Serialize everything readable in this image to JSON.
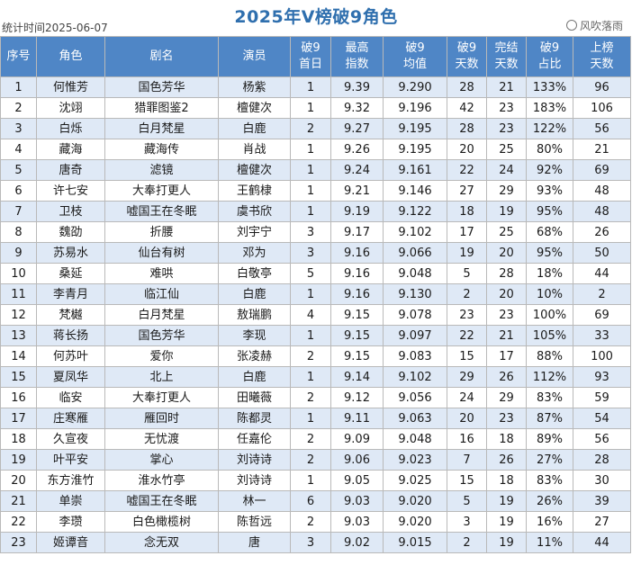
{
  "title": "2025年V榜破9角色",
  "stat_date": "统计时间2025-06-07",
  "watermark": "风吹落雨",
  "headers": {
    "seq": "序号",
    "role": "角色",
    "drama": "剧名",
    "actor": "演员",
    "first_day": [
      "破9",
      "首日"
    ],
    "max_index": [
      "最高",
      "指数"
    ],
    "avg": [
      "破9",
      "均值"
    ],
    "days": [
      "破9",
      "天数"
    ],
    "finished": [
      "完结",
      "天数"
    ],
    "ratio": [
      "破9",
      "占比"
    ],
    "list_days": [
      "上榜",
      "天数"
    ]
  },
  "rows": [
    {
      "seq": "1",
      "role": "何惟芳",
      "drama": "国色芳华",
      "actor": "杨紫",
      "first_day": "1",
      "max_index": "9.39",
      "avg": "9.290",
      "days": "28",
      "finished": "21",
      "ratio": "133%",
      "list_days": "96"
    },
    {
      "seq": "2",
      "role": "沈翊",
      "drama": "猎罪图鉴2",
      "actor": "檀健次",
      "first_day": "1",
      "max_index": "9.32",
      "avg": "9.196",
      "days": "42",
      "finished": "23",
      "ratio": "183%",
      "list_days": "106"
    },
    {
      "seq": "3",
      "role": "白烁",
      "drama": "白月梵星",
      "actor": "白鹿",
      "first_day": "2",
      "max_index": "9.27",
      "avg": "9.195",
      "days": "28",
      "finished": "23",
      "ratio": "122%",
      "list_days": "56"
    },
    {
      "seq": "4",
      "role": "藏海",
      "drama": "藏海传",
      "actor": "肖战",
      "first_day": "1",
      "max_index": "9.26",
      "avg": "9.195",
      "days": "20",
      "finished": "25",
      "ratio": "80%",
      "list_days": "21"
    },
    {
      "seq": "5",
      "role": "唐奇",
      "drama": "滤镜",
      "actor": "檀健次",
      "first_day": "1",
      "max_index": "9.24",
      "avg": "9.161",
      "days": "22",
      "finished": "24",
      "ratio": "92%",
      "list_days": "69"
    },
    {
      "seq": "6",
      "role": "许七安",
      "drama": "大奉打更人",
      "actor": "王鹤棣",
      "first_day": "1",
      "max_index": "9.21",
      "avg": "9.146",
      "days": "27",
      "finished": "29",
      "ratio": "93%",
      "list_days": "48"
    },
    {
      "seq": "7",
      "role": "卫枝",
      "drama": "嘘国王在冬眠",
      "actor": "虞书欣",
      "first_day": "1",
      "max_index": "9.19",
      "avg": "9.122",
      "days": "18",
      "finished": "19",
      "ratio": "95%",
      "list_days": "48"
    },
    {
      "seq": "8",
      "role": "魏劭",
      "drama": "折腰",
      "actor": "刘宇宁",
      "first_day": "3",
      "max_index": "9.17",
      "avg": "9.102",
      "days": "17",
      "finished": "25",
      "ratio": "68%",
      "list_days": "26"
    },
    {
      "seq": "9",
      "role": "苏易水",
      "drama": "仙台有树",
      "actor": "邓为",
      "first_day": "3",
      "max_index": "9.16",
      "avg": "9.066",
      "days": "19",
      "finished": "20",
      "ratio": "95%",
      "list_days": "50"
    },
    {
      "seq": "10",
      "role": "桑延",
      "drama": "难哄",
      "actor": "白敬亭",
      "first_day": "5",
      "max_index": "9.16",
      "avg": "9.048",
      "days": "5",
      "finished": "28",
      "ratio": "18%",
      "list_days": "44"
    },
    {
      "seq": "11",
      "role": "李青月",
      "drama": "临江仙",
      "actor": "白鹿",
      "first_day": "1",
      "max_index": "9.16",
      "avg": "9.130",
      "days": "2",
      "finished": "20",
      "ratio": "10%",
      "list_days": "2"
    },
    {
      "seq": "12",
      "role": "梵樾",
      "drama": "白月梵星",
      "actor": "敖瑞鹏",
      "first_day": "4",
      "max_index": "9.15",
      "avg": "9.078",
      "days": "23",
      "finished": "23",
      "ratio": "100%",
      "list_days": "69"
    },
    {
      "seq": "13",
      "role": "蒋长扬",
      "drama": "国色芳华",
      "actor": "李现",
      "first_day": "1",
      "max_index": "9.15",
      "avg": "9.097",
      "days": "22",
      "finished": "21",
      "ratio": "105%",
      "list_days": "33"
    },
    {
      "seq": "14",
      "role": "何苏叶",
      "drama": "爱你",
      "actor": "张凌赫",
      "first_day": "2",
      "max_index": "9.15",
      "avg": "9.083",
      "days": "15",
      "finished": "17",
      "ratio": "88%",
      "list_days": "100"
    },
    {
      "seq": "15",
      "role": "夏凤华",
      "drama": "北上",
      "actor": "白鹿",
      "first_day": "1",
      "max_index": "9.14",
      "avg": "9.102",
      "days": "29",
      "finished": "26",
      "ratio": "112%",
      "list_days": "93"
    },
    {
      "seq": "16",
      "role": "临安",
      "drama": "大奉打更人",
      "actor": "田曦薇",
      "first_day": "2",
      "max_index": "9.12",
      "avg": "9.056",
      "days": "24",
      "finished": "29",
      "ratio": "83%",
      "list_days": "59"
    },
    {
      "seq": "17",
      "role": "庄寒雁",
      "drama": "雁回时",
      "actor": "陈都灵",
      "first_day": "1",
      "max_index": "9.11",
      "avg": "9.063",
      "days": "20",
      "finished": "23",
      "ratio": "87%",
      "list_days": "54"
    },
    {
      "seq": "18",
      "role": "久宣夜",
      "drama": "无忧渡",
      "actor": "任嘉伦",
      "first_day": "2",
      "max_index": "9.09",
      "avg": "9.048",
      "days": "16",
      "finished": "18",
      "ratio": "89%",
      "list_days": "56"
    },
    {
      "seq": "19",
      "role": "叶平安",
      "drama": "掌心",
      "actor": "刘诗诗",
      "first_day": "2",
      "max_index": "9.06",
      "avg": "9.023",
      "days": "7",
      "finished": "26",
      "ratio": "27%",
      "list_days": "28"
    },
    {
      "seq": "20",
      "role": "东方淮竹",
      "drama": "淮水竹亭",
      "actor": "刘诗诗",
      "first_day": "1",
      "max_index": "9.05",
      "avg": "9.025",
      "days": "15",
      "finished": "18",
      "ratio": "83%",
      "list_days": "30"
    },
    {
      "seq": "21",
      "role": "单崇",
      "drama": "嘘国王在冬眠",
      "actor": "林一",
      "first_day": "6",
      "max_index": "9.03",
      "avg": "9.020",
      "days": "5",
      "finished": "19",
      "ratio": "26%",
      "list_days": "39"
    },
    {
      "seq": "22",
      "role": "李瓒",
      "drama": "白色橄榄树",
      "actor": "陈哲远",
      "first_day": "2",
      "max_index": "9.03",
      "avg": "9.020",
      "days": "3",
      "finished": "19",
      "ratio": "16%",
      "list_days": "27"
    },
    {
      "seq": "23",
      "role": "姬谭音",
      "drama": "念无双",
      "actor": "唐",
      "first_day": "3",
      "max_index": "9.02",
      "avg": "9.015",
      "days": "2",
      "finished": "19",
      "ratio": "11%",
      "list_days": "44"
    }
  ]
}
